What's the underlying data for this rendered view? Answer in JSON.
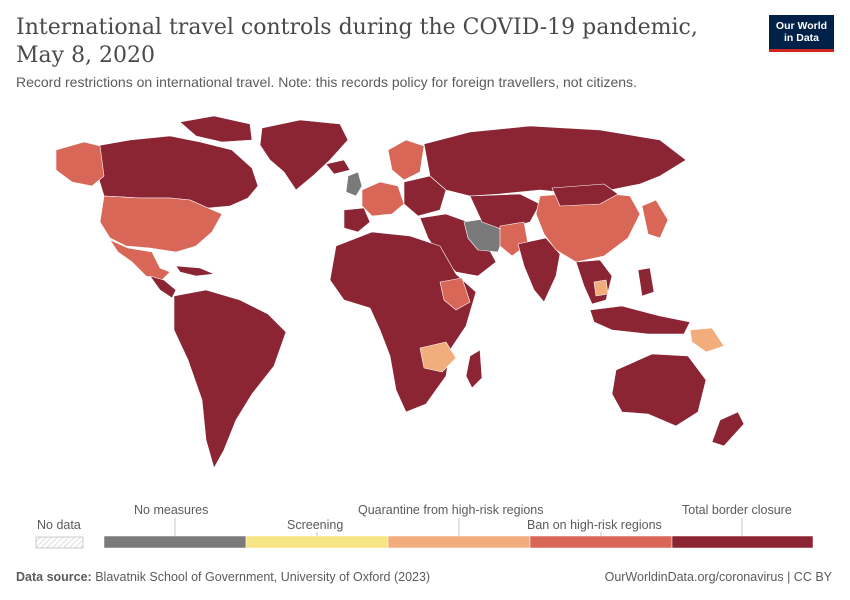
{
  "header": {
    "title": "International travel controls during the COVID-19 pandemic, May 8, 2020",
    "subtitle": "Record restrictions on international travel. Note: this records policy for foreign travellers, not citizens."
  },
  "logo": {
    "line1": "Our World",
    "line2": "in Data"
  },
  "legend": {
    "no_data": "No data",
    "items": [
      {
        "label": "No measures",
        "color": "#7a7a7a"
      },
      {
        "label": "Screening",
        "color": "#f7e483"
      },
      {
        "label": "Quarantine from high-risk regions",
        "color": "#f2ad7c"
      },
      {
        "label": "Ban on high-risk regions",
        "color": "#d86758"
      },
      {
        "label": "Total border closure",
        "color": "#8b2534"
      }
    ]
  },
  "footer": {
    "source_label": "Data source:",
    "source_text": "Blavatnik School of Government, University of Oxford (2023)",
    "url_text": "OurWorldinData.org/coronavirus | CC BY"
  }
}
